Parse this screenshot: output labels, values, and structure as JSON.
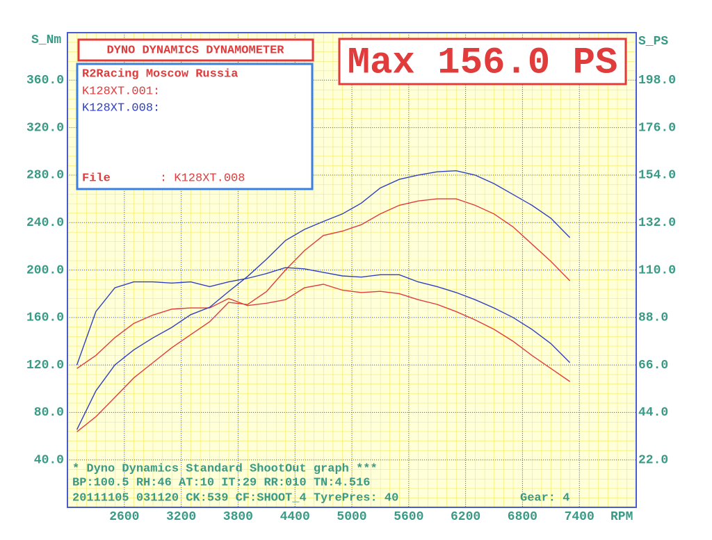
{
  "chart_data": {
    "type": "line",
    "title": "DYNO DYNAMICS DYNAMOMETER",
    "headline": "Max 156.0 PS",
    "y_label": "S_Nm",
    "y2_label": "S_PS",
    "x_label": "RPM",
    "info": {
      "owner": "R2Racing Moscow Russia",
      "file_label": "File",
      "file_value": ": K128XT.008"
    },
    "footer": {
      "line1": "* Dyno Dynamics Standard ShootOut graph ***",
      "line2": "BP:100.5 RH:46 AT:10 IT:29 RR:010 TN:4.516",
      "line3": "20111105 031120 CK:539 CF:SHOOT_4 TyrePres: 40",
      "gear": "Gear: 4"
    },
    "xlim": [
      2000,
      8000
    ],
    "xticks": [
      2600,
      3200,
      3800,
      4400,
      5000,
      5600,
      6200,
      6800,
      7400
    ],
    "ylim": [
      0,
      400
    ],
    "yticks": [
      {
        "value": 40,
        "label": "40.0"
      },
      {
        "value": 80,
        "label": "80.0"
      },
      {
        "value": 120,
        "label": "120.0"
      },
      {
        "value": 160,
        "label": "160.0"
      },
      {
        "value": 200,
        "label": "200.0"
      },
      {
        "value": 240,
        "label": "240.0"
      },
      {
        "value": 280,
        "label": "280.0"
      },
      {
        "value": 320,
        "label": "320.0"
      },
      {
        "value": 360,
        "label": "360.0"
      }
    ],
    "y2lim": [
      0,
      220
    ],
    "y2ticks": [
      {
        "value": 22,
        "label": "22.0"
      },
      {
        "value": 44,
        "label": "44.0"
      },
      {
        "value": 66,
        "label": "66.0"
      },
      {
        "value": 88,
        "label": "88.0"
      },
      {
        "value": 110,
        "label": "110.0"
      },
      {
        "value": 132,
        "label": "132.0"
      },
      {
        "value": 154,
        "label": "154.0"
      },
      {
        "value": 176,
        "label": "176.0"
      },
      {
        "value": 198,
        "label": "198.0"
      }
    ],
    "grid": true,
    "x": [
      2100,
      2300,
      2500,
      2700,
      2900,
      3100,
      3300,
      3500,
      3700,
      3900,
      4100,
      4300,
      4500,
      4700,
      4900,
      5100,
      5300,
      5500,
      5700,
      5900,
      6100,
      6300,
      6500,
      6700,
      6900,
      7100,
      7300
    ],
    "runs": [
      {
        "name": "K128XT.001:",
        "color": "#e03c3c",
        "torque": [
          117,
          128,
          143,
          155,
          162,
          167,
          168,
          168,
          176,
          170,
          172,
          175,
          185,
          188,
          183,
          181,
          182,
          180,
          175,
          171,
          165,
          158,
          150,
          140,
          128,
          117,
          106
        ],
        "power": [
          35,
          42,
          51,
          60,
          67,
          74,
          80,
          86,
          95,
          94,
          100,
          110,
          119,
          126,
          128,
          131,
          136,
          140,
          142,
          143,
          143,
          140,
          136,
          130,
          122,
          114,
          105
        ]
      },
      {
        "name": "K128XT.008:",
        "color": "#2f3fc0",
        "torque": [
          120,
          165,
          185,
          190,
          190,
          189,
          190,
          186,
          190,
          193,
          197,
          202,
          201,
          198,
          195,
          194,
          196,
          196,
          190,
          186,
          181,
          175,
          168,
          160,
          150,
          138,
          122
        ],
        "power": [
          36,
          54,
          66,
          73,
          78.5,
          83.4,
          89.3,
          92.7,
          100,
          107,
          115,
          123.7,
          128.8,
          132.5,
          136,
          141,
          148,
          152,
          154,
          155.5,
          156,
          154,
          150,
          145,
          140,
          134,
          125
        ]
      }
    ]
  }
}
